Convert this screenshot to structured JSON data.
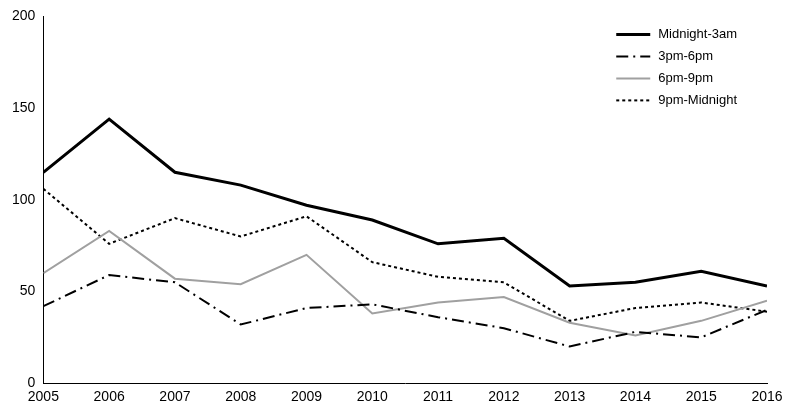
{
  "chart_data": {
    "type": "line",
    "x": [
      2005,
      2006,
      2007,
      2008,
      2009,
      2010,
      2011,
      2012,
      2013,
      2014,
      2015,
      2016
    ],
    "xlim": [
      2005,
      2016
    ],
    "xticks": [
      2005,
      2006,
      2007,
      2008,
      2009,
      2010,
      2011,
      2012,
      2013,
      2014,
      2015,
      2016
    ],
    "ylim": [
      0,
      200
    ],
    "yticks": [
      0,
      50,
      100,
      150,
      200
    ],
    "grid": false,
    "legend": "top-right",
    "series": [
      {
        "name": "Midnight-3am",
        "color": "#000000",
        "line_style": "solid",
        "values": [
          115,
          144,
          115,
          108,
          97,
          89,
          76,
          79,
          53,
          55,
          61,
          53
        ]
      },
      {
        "name": "3pm-6pm",
        "color": "#000000",
        "line_style": "dashdot",
        "values": [
          42,
          59,
          55,
          32,
          41,
          43,
          36,
          30,
          20,
          28,
          25,
          40
        ]
      },
      {
        "name": "6pm-9pm",
        "color": "#a0a0a0",
        "line_style": "solid",
        "values": [
          60,
          83,
          57,
          54,
          70,
          38,
          44,
          47,
          33,
          26,
          34,
          45
        ]
      },
      {
        "name": "9pm-Midnight",
        "color": "#000000",
        "line_style": "dotted",
        "values": [
          106,
          76,
          90,
          80,
          91,
          66,
          58,
          55,
          34,
          41,
          44,
          39
        ]
      }
    ]
  }
}
